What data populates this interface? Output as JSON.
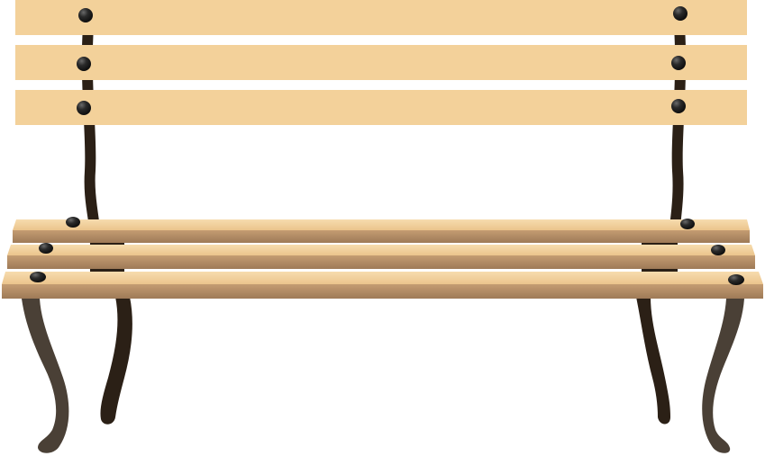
{
  "scene": {
    "subject": "park-bench",
    "background_color": "#ffffff",
    "back_slat_count": 3,
    "seat_slat_count": 3,
    "colors": {
      "back_slat": "#F3D19A",
      "seat_slat_top": "#F2D29E",
      "seat_slat_front": "#B08B66",
      "frame_dark": "#2B2016",
      "frame_front_leg": "#4A4036",
      "bolt": "#1E1E1E"
    }
  }
}
